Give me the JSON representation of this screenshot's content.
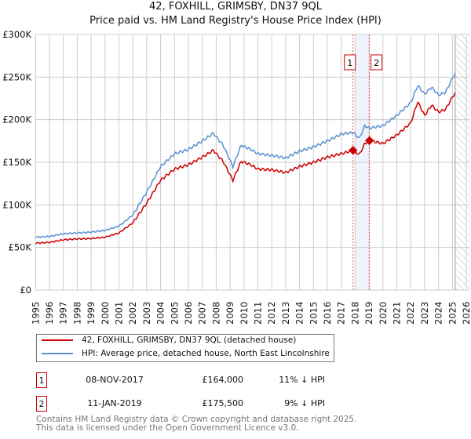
{
  "title": "42, FOXHILL, GRIMSBY, DN37 9QL",
  "subtitle": "Price paid vs. HM Land Registry's House Price Index (HPI)",
  "chart_data": {
    "type": "line",
    "y_ticks": [
      "£0",
      "£50K",
      "£100K",
      "£150K",
      "£200K",
      "£250K",
      "£300K"
    ],
    "y_tick_values": [
      0,
      50000,
      100000,
      150000,
      200000,
      250000,
      300000
    ],
    "ylim": [
      0,
      300000
    ],
    "xlim": [
      1995,
      2026
    ],
    "x_ticks": [
      "1995",
      "1996",
      "1997",
      "1998",
      "1999",
      "2000",
      "2001",
      "2002",
      "2003",
      "2004",
      "2005",
      "2006",
      "2007",
      "2008",
      "2009",
      "2010",
      "2011",
      "2012",
      "2013",
      "2014",
      "2015",
      "2016",
      "2017",
      "2018",
      "2019",
      "2020",
      "2021",
      "2022",
      "2023",
      "2024",
      "2025",
      "2026"
    ],
    "grid": true,
    "forecast_hatch_from": 2025.2,
    "series": [
      {
        "name": "HPI: Average price, detached house, North East Lincolnshire",
        "color": "#5b8fd4",
        "x": [
          1995,
          1996,
          1997,
          1998,
          1999,
          2000,
          2001,
          2002,
          2003,
          2004,
          2005,
          2006,
          2007,
          2007.8,
          2008.5,
          2009.2,
          2009.8,
          2010.5,
          2011,
          2012,
          2013,
          2014,
          2015,
          2016,
          2017,
          2017.85,
          2018.3,
          2018.7,
          2019,
          2020,
          2021,
          2022,
          2022.5,
          2023,
          2023.5,
          2024,
          2024.5,
          2025.2
        ],
        "y": [
          62000,
          63000,
          66000,
          67000,
          68000,
          70000,
          75000,
          88000,
          115000,
          145000,
          160000,
          165000,
          175000,
          184000,
          170000,
          145000,
          170000,
          165000,
          160000,
          158000,
          155000,
          163000,
          168000,
          175000,
          183000,
          185000,
          178000,
          193000,
          190000,
          193000,
          205000,
          220000,
          240000,
          230000,
          238000,
          229000,
          232000,
          255000
        ]
      },
      {
        "name": "42, FOXHILL, GRIMSBY, DN37 9QL (detached house)",
        "color": "#cc0000",
        "x": [
          1995,
          1996,
          1997,
          1998,
          1999,
          2000,
          2001,
          2002,
          2003,
          2004,
          2005,
          2006,
          2007,
          2007.8,
          2008.5,
          2009.2,
          2009.8,
          2010.5,
          2011,
          2012,
          2013,
          2014,
          2015,
          2016,
          2017,
          2017.85,
          2018.3,
          2018.7,
          2019.03,
          2020,
          2021,
          2022,
          2022.5,
          2023,
          2023.5,
          2024,
          2024.5,
          2025.2
        ],
        "y": [
          55000,
          56000,
          59000,
          60000,
          60500,
          62000,
          67000,
          79000,
          102000,
          129000,
          142000,
          147000,
          156000,
          164000,
          151000,
          129000,
          151000,
          147000,
          142000,
          141000,
          138000,
          145000,
          150000,
          156000,
          160000,
          164000,
          159000,
          172000,
          175500,
          172000,
          182000,
          196000,
          221000,
          205000,
          217000,
          209000,
          212000,
          232000
        ]
      }
    ],
    "sales": [
      {
        "label": "1",
        "x": 2017.85,
        "y": 164000
      },
      {
        "label": "2",
        "x": 2019.03,
        "y": 175500
      }
    ]
  },
  "legend": {
    "property": "42, FOXHILL, GRIMSBY, DN37 9QL (detached house)",
    "hpi": "HPI: Average price, detached house, North East Lincolnshire"
  },
  "transactions": [
    {
      "num": "1",
      "date": "08-NOV-2017",
      "price": "£164,000",
      "hpi": "11% ↓ HPI"
    },
    {
      "num": "2",
      "date": "11-JAN-2019",
      "price": "£175,500",
      "hpi": "9% ↓ HPI"
    }
  ],
  "footer": [
    "Contains HM Land Registry data © Crown copyright and database right 2025.",
    "This data is licensed under the Open Government Licence v3.0."
  ]
}
